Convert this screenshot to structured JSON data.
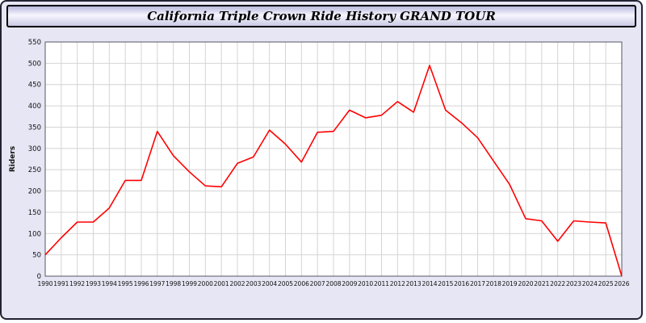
{
  "title_bar": {
    "title": "California Triple Crown Ride History GRAND TOUR"
  },
  "chart_data": {
    "type": "line",
    "title": "California Triple Crown Ride History GRAND TOUR",
    "xlabel": "",
    "ylabel": "Riders",
    "ylim": [
      0,
      550
    ],
    "ytick_step": 50,
    "grid": true,
    "legend": "none",
    "line_color": "#ff0000",
    "x": [
      1990,
      1991,
      1992,
      1993,
      1994,
      1995,
      1996,
      1997,
      1998,
      1999,
      2000,
      2001,
      2002,
      2003,
      2004,
      2005,
      2006,
      2007,
      2008,
      2009,
      2010,
      2011,
      2012,
      2013,
      2014,
      2015,
      2016,
      2017,
      2018,
      2019,
      2020,
      2021,
      2022,
      2023,
      2024,
      2025,
      2026
    ],
    "values": [
      50,
      90,
      127,
      127,
      160,
      225,
      225,
      340,
      283,
      245,
      212,
      210,
      265,
      280,
      343,
      310,
      268,
      338,
      340,
      390,
      372,
      378,
      410,
      385,
      495,
      390,
      360,
      325,
      270,
      215,
      135,
      130,
      82,
      130,
      127,
      125,
      0
    ]
  }
}
